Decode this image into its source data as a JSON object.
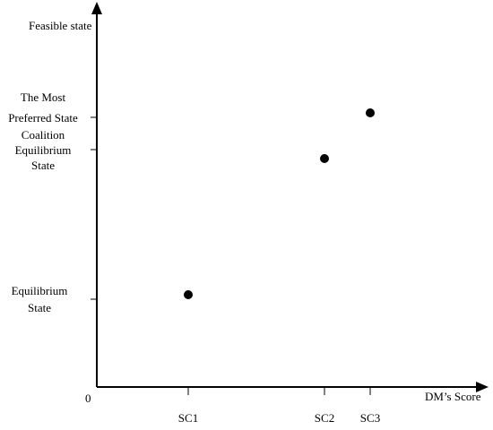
{
  "chart_data": {
    "type": "scatter",
    "xlabel": "DM’s Score",
    "ylabel": "Feasible state",
    "origin_label": "0",
    "x_categories": [
      "SC1",
      "SC2",
      "SC3"
    ],
    "y_levels": [
      {
        "name": "Equilibrium State",
        "lines": [
          "Equilibrium",
          "State"
        ]
      },
      {
        "name": "Coalition Equilibrium State",
        "lines": [
          "Coalition",
          "Equilibrium",
          "State"
        ]
      },
      {
        "name": "The Most Preferred State",
        "lines": [
          "The Most",
          "Preferred State"
        ]
      }
    ],
    "points": [
      {
        "x": "SC1",
        "y": "Equilibrium State"
      },
      {
        "x": "SC2",
        "y": "Coalition Equilibrium State"
      },
      {
        "x": "SC3",
        "y": "The Most Preferred State"
      }
    ],
    "grid": false,
    "legend": "none"
  }
}
